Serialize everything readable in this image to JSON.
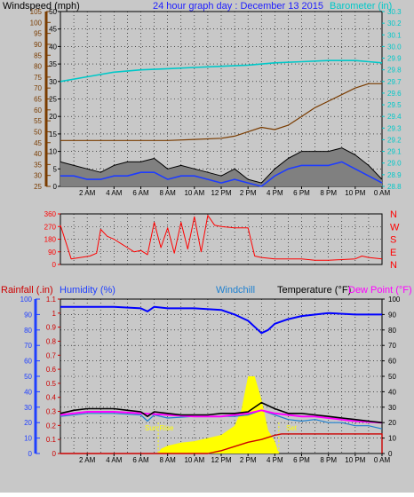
{
  "colors": {
    "background": "#c8c8c8",
    "plot_bg": "#c8c8c8",
    "wind": "#000000",
    "gust_fill": "#808080",
    "wind_avg": "#1e3cff",
    "baro": "#00c8c8",
    "rain_axis": "#7a3c00",
    "direction": "#ff0000",
    "humidity": "#0000ff",
    "windchill": "#1e80d0",
    "temperature": "#000000",
    "dewpoint": "#ff00ff",
    "rainfall": "#cc0000",
    "solar": "#ffff00",
    "sun_label": "#ffff00",
    "humidity_axis": "#2040ff"
  },
  "chart_data": [
    {
      "type": "line",
      "title": "24 hour graph day : December 13 2015",
      "labels": {
        "windspeed": "Windspeed (mph)",
        "barometer": "Barometer (in)"
      },
      "x_ticks": [
        "2 AM",
        "4 AM",
        "6 AM",
        "8 AM",
        "10 AM",
        "12 PM",
        "2 PM",
        "4 PM",
        "6 PM",
        "8 PM",
        "10 PM",
        "0 AM"
      ],
      "x_range_hours": [
        0,
        24
      ],
      "grid": true,
      "left_axis": {
        "label": "Windspeed (mph)",
        "range": [
          0,
          50
        ],
        "ticks": [
          0,
          5,
          10,
          15,
          20,
          25,
          30,
          35,
          40,
          45,
          50
        ]
      },
      "outer_left_axis": {
        "range": [
          25,
          105
        ],
        "ticks": [
          25,
          30,
          35,
          40,
          45,
          50,
          55,
          60,
          65,
          70,
          75,
          80,
          85,
          90,
          95,
          100,
          105
        ]
      },
      "right_axis": {
        "label": "Barometer (in)",
        "range": [
          28.8,
          30.3
        ],
        "ticks": [
          28.8,
          28.9,
          29.0,
          29.1,
          29.2,
          29.3,
          29.4,
          29.5,
          29.6,
          29.7,
          29.8,
          29.9,
          30.0,
          30.1,
          30.2,
          30.3
        ]
      },
      "series": [
        {
          "key": "barometer",
          "axis": "right",
          "x": [
            0,
            2,
            4,
            6,
            8,
            10,
            12,
            14,
            16,
            18,
            20,
            22,
            23,
            24
          ],
          "y": [
            29.7,
            29.74,
            29.78,
            29.8,
            29.81,
            29.82,
            29.83,
            29.84,
            29.86,
            29.87,
            29.88,
            29.88,
            29.87,
            29.86
          ]
        },
        {
          "key": "rain_line",
          "axis": "outer_left",
          "x": [
            0,
            3,
            6,
            8,
            10,
            12,
            13,
            14,
            15,
            16,
            17,
            18,
            19,
            20,
            21,
            22,
            23,
            24
          ],
          "y": [
            46,
            46,
            46,
            46,
            46.5,
            47,
            48,
            50,
            52,
            51,
            53,
            57,
            61,
            64,
            67,
            70,
            72,
            72
          ]
        },
        {
          "key": "wind_gust",
          "axis": "left",
          "x": [
            0,
            1,
            2,
            3,
            4,
            5,
            6,
            7,
            8,
            9,
            10,
            11,
            12,
            13,
            14,
            15,
            16,
            17,
            18,
            19,
            20,
            21,
            22,
            23,
            24
          ],
          "y": [
            7,
            6,
            5,
            4,
            6,
            7,
            7,
            8,
            5,
            6,
            5,
            4,
            3,
            5,
            2,
            1,
            5,
            8,
            10,
            10,
            10,
            11,
            9,
            6,
            2
          ]
        },
        {
          "key": "wind_avg",
          "axis": "left",
          "x": [
            0,
            1,
            2,
            3,
            4,
            5,
            6,
            7,
            8,
            9,
            10,
            11,
            12,
            13,
            14,
            15,
            16,
            17,
            18,
            19,
            20,
            21,
            22,
            23,
            24
          ],
          "y": [
            3,
            3,
            2,
            2,
            3,
            3,
            4,
            4,
            2,
            3,
            3,
            2,
            1,
            2,
            1,
            0,
            3,
            5,
            6,
            6,
            6,
            7,
            5,
            3,
            1
          ]
        }
      ]
    },
    {
      "type": "line",
      "x_range_hours": [
        0,
        24
      ],
      "grid": true,
      "left_axis": {
        "range": [
          0,
          360
        ],
        "ticks": [
          0,
          90,
          180,
          270,
          360
        ]
      },
      "right_axis": {
        "ticks": [
          "N",
          "W",
          "S",
          "E",
          "N"
        ]
      },
      "series": [
        {
          "key": "wind_direction",
          "x": [
            0,
            0.8,
            1.5,
            2.2,
            2.7,
            3,
            3.5,
            4,
            4.5,
            5,
            5.5,
            6,
            6.5,
            7,
            7.5,
            8,
            8.5,
            9,
            9.5,
            10,
            10.5,
            11,
            11.5,
            12,
            13,
            14,
            14.5,
            15,
            16,
            17,
            18,
            19,
            20,
            21,
            22,
            22.5,
            23,
            24
          ],
          "y": [
            280,
            40,
            50,
            60,
            80,
            250,
            200,
            180,
            150,
            120,
            90,
            100,
            70,
            300,
            120,
            260,
            80,
            300,
            110,
            340,
            90,
            350,
            280,
            270,
            260,
            260,
            60,
            50,
            40,
            40,
            40,
            30,
            30,
            35,
            40,
            60,
            50,
            40
          ]
        }
      ]
    },
    {
      "type": "line",
      "labels": {
        "rainfall": "Rainfall (.in)",
        "humidity": "Humidity (%)",
        "windchill": "Windchill",
        "temperature": "Temperature (°F)",
        "dewpoint": "Dew Point (°F)",
        "sunrise": "Sun Rise",
        "sunset": "Set"
      },
      "x_ticks": [
        "2 AM",
        "4 AM",
        "6 AM",
        "8 AM",
        "10 AM",
        "12 PM",
        "2 PM",
        "4 PM",
        "6 PM",
        "8 PM",
        "10 PM",
        "0 AM"
      ],
      "x_range_hours": [
        0,
        24
      ],
      "grid": true,
      "humidity_axis": {
        "range": [
          0,
          100
        ],
        "ticks": [
          0,
          10,
          20,
          30,
          40,
          50,
          60,
          70,
          80,
          90,
          100
        ]
      },
      "rain_axis": {
        "range": [
          0,
          1.1
        ],
        "ticks": [
          0,
          0.1,
          0.2,
          0.3,
          0.4,
          0.5,
          0.6,
          0.7,
          0.8,
          0.9,
          1,
          1.1
        ]
      },
      "temp_axis": {
        "range": [
          0,
          100
        ],
        "ticks": [
          0,
          10,
          20,
          30,
          40,
          50,
          60,
          70,
          80,
          90,
          100
        ]
      },
      "sunrise_hour": 7.3,
      "sunset_hour": 16.3,
      "series": [
        {
          "key": "humidity",
          "axis": "humidity",
          "x": [
            0,
            2,
            4,
            6,
            6.5,
            7,
            8,
            10,
            12,
            13,
            14,
            14.5,
            15,
            15.5,
            16,
            17,
            18,
            20,
            22,
            24
          ],
          "y": [
            95,
            95,
            95,
            94,
            92,
            95,
            94,
            94,
            93,
            90,
            86,
            82,
            78,
            80,
            84,
            87,
            89,
            91,
            90,
            90
          ]
        },
        {
          "key": "temperature",
          "axis": "temp",
          "x": [
            0,
            1,
            2,
            3,
            4,
            5,
            6,
            6.5,
            7,
            8,
            9,
            10,
            11,
            12,
            13,
            14,
            15,
            16,
            17,
            18,
            19,
            20,
            21,
            22,
            23,
            24
          ],
          "y": [
            26,
            28,
            29,
            29,
            29,
            28,
            27,
            24,
            27,
            26,
            25,
            25,
            25,
            26,
            26,
            27,
            33,
            29,
            26,
            26,
            25,
            24,
            23,
            22,
            21,
            20
          ]
        },
        {
          "key": "windchill",
          "axis": "temp",
          "x": [
            0,
            2,
            4,
            6,
            6.5,
            7,
            8,
            10,
            12,
            13,
            14,
            15,
            16,
            17,
            18,
            19,
            20,
            21,
            22,
            23,
            24
          ],
          "y": [
            24,
            26,
            26,
            25,
            21,
            25,
            23,
            24,
            24,
            24,
            25,
            28,
            25,
            22,
            21,
            22,
            20,
            20,
            18,
            18,
            16
          ]
        },
        {
          "key": "dewpoint",
          "axis": "temp",
          "x": [
            0,
            2,
            4,
            6,
            8,
            10,
            12,
            13,
            14,
            15,
            16,
            17,
            18,
            19,
            20,
            22,
            24
          ],
          "y": [
            25,
            27,
            27,
            26,
            25,
            24,
            24,
            25,
            26,
            28,
            26,
            25,
            24,
            24,
            23,
            21,
            20
          ]
        },
        {
          "key": "rainfall",
          "axis": "rain",
          "x": [
            0,
            7,
            8,
            9,
            10,
            11,
            12,
            13,
            14,
            15,
            16,
            16.5,
            17,
            24,
            24
          ],
          "y": [
            0,
            0,
            0,
            0,
            0,
            0,
            0.02,
            0.05,
            0.08,
            0.1,
            0.13,
            0.14,
            0.14,
            0.14,
            0
          ]
        },
        {
          "key": "solar",
          "axis": "temp",
          "x": [
            7.3,
            7.5,
            8,
            9,
            10,
            11,
            12,
            13,
            13.5,
            14,
            14.5,
            15,
            15.5,
            16,
            16.3
          ],
          "y": [
            0,
            3,
            5,
            7,
            8,
            10,
            12,
            18,
            28,
            50,
            50,
            35,
            15,
            8,
            0
          ]
        }
      ]
    }
  ]
}
